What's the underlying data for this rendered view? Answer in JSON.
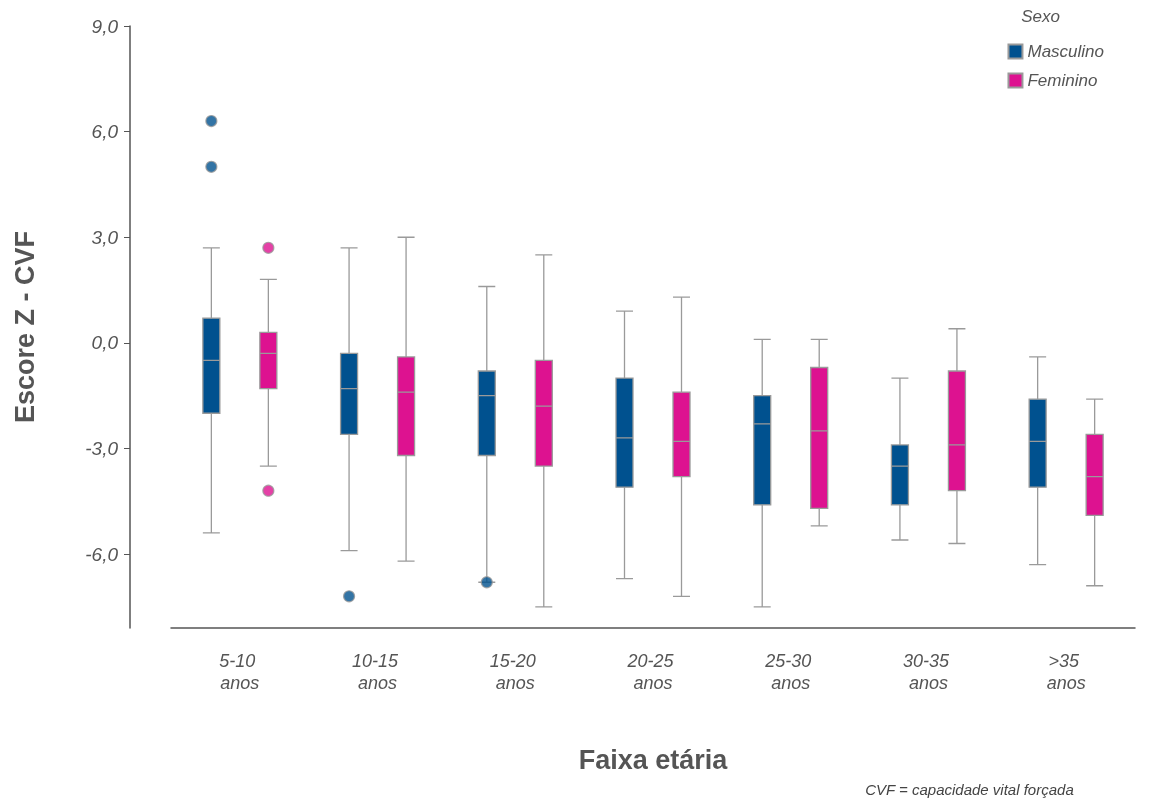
{
  "chart_data": {
    "type": "box",
    "xlabel": "Faixa etária",
    "ylabel": "Escore Z - CVF",
    "legend_title": "Sexo",
    "legend": "top right",
    "annotations": [
      "CVF = capacidade vital forçada"
    ],
    "categories": [
      "5-10 anos",
      "10-15 anos",
      "15-20 anos",
      "20-25 anos",
      "25-30 anos",
      "30-35 anos",
      ">35 anos"
    ],
    "ylim": [
      -8.1,
      9.0
    ],
    "yticks": [
      {
        "value": -6,
        "label": "-6,0"
      },
      {
        "value": -3,
        "label": "-3,0"
      },
      {
        "value": 0,
        "label": "0,0"
      },
      {
        "value": 3,
        "label": "3,0"
      },
      {
        "value": 6,
        "label": "6,0"
      },
      {
        "value": 9,
        "label": "9,0"
      }
    ],
    "series": [
      {
        "name": "Masculino",
        "color": "#00518f",
        "boxes": [
          {
            "low": -5.4,
            "q1": -2.0,
            "median": -0.5,
            "q3": 0.7,
            "high": 2.7,
            "outliers": [
              6.3,
              5.0
            ]
          },
          {
            "low": -5.9,
            "q1": -2.6,
            "median": -1.3,
            "q3": -0.3,
            "high": 2.7,
            "outliers": [
              -7.2
            ]
          },
          {
            "low": -6.8,
            "q1": -3.2,
            "median": -1.5,
            "q3": -0.8,
            "high": 1.6,
            "outliers": [
              -6.8
            ]
          },
          {
            "low": -6.7,
            "q1": -4.1,
            "median": -2.7,
            "q3": -1.0,
            "high": 0.9
          },
          {
            "low": -7.5,
            "q1": -4.6,
            "median": -2.3,
            "q3": -1.5,
            "high": 0.1
          },
          {
            "low": -5.6,
            "q1": -4.6,
            "median": -3.5,
            "q3": -2.9,
            "high": -1.0
          },
          {
            "low": -6.3,
            "q1": -4.1,
            "median": -2.8,
            "q3": -1.6,
            "high": -0.4
          }
        ]
      },
      {
        "name": "Feminino",
        "color": "#dd1290",
        "boxes": [
          {
            "low": -3.5,
            "q1": -1.3,
            "median": -0.3,
            "q3": 0.3,
            "high": 1.8,
            "outliers": [
              2.7,
              -4.2
            ]
          },
          {
            "low": -6.2,
            "q1": -3.2,
            "median": -1.4,
            "q3": -0.4,
            "high": 3.0
          },
          {
            "low": -7.5,
            "q1": -3.5,
            "median": -1.8,
            "q3": -0.5,
            "high": 2.5
          },
          {
            "low": -7.2,
            "q1": -3.8,
            "median": -2.8,
            "q3": -1.4,
            "high": 1.3
          },
          {
            "low": -5.2,
            "q1": -4.7,
            "median": -2.5,
            "q3": -0.7,
            "high": 0.1
          },
          {
            "low": -5.7,
            "q1": -4.2,
            "median": -2.9,
            "q3": -0.8,
            "high": 0.4
          },
          {
            "low": -6.9,
            "q1": -4.9,
            "median": -3.8,
            "q3": -2.6,
            "high": -1.6
          }
        ]
      }
    ]
  }
}
